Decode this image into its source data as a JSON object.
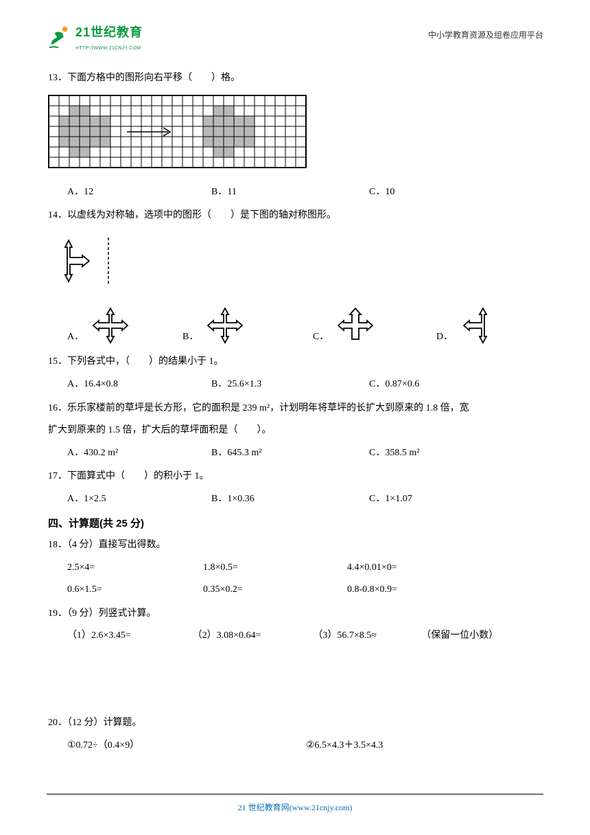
{
  "header": {
    "logo_main": "21世纪教育",
    "logo_sub": "HTTP://WWW.21CNJY.COM",
    "right_text": "中小学教育资源及组卷应用平台"
  },
  "q13": {
    "text": "13．下面方格中的图形向右平移（　　）格。",
    "optA": "A．12",
    "optB": "B．11",
    "optC": "C．10"
  },
  "q14": {
    "text": "14．以虚线为对称轴，选项中的图形（　　）是下图的轴对称图形。",
    "optA": "A．",
    "optB": "B．",
    "optC": "C．",
    "optD": "D．"
  },
  "q15": {
    "text": "15．下列各式中，（　　）的结果小于 1。",
    "optA": "A．16.4×0.8",
    "optB": "B．25.6×1.3",
    "optC": "C．0.87×0.6"
  },
  "q16": {
    "text1": "16．乐乐家楼前的草坪是长方形，它的面积是 239 m²，计划明年将草坪的长扩大到原来的 1.8 倍，宽",
    "text2": "扩大到原来的 1.5 倍，扩大后的草坪面积是（　　）。",
    "optA": "A．430.2 m²",
    "optB": "B．645.3 m²",
    "optC": "C．358.5 m²"
  },
  "q17": {
    "text": "17．下面算式中（　　）的积小于 1。",
    "optA": "A．1×2.5",
    "optB": "B．1×0.36",
    "optC": "C．1×1.07"
  },
  "section4": "四、计算题(共 25 分)",
  "q18": {
    "text": "18．（4 分）直接写出得数。",
    "r1c1": "2.5×4=",
    "r1c2": "1.8×0.5=",
    "r1c3": "4.4×0.01×0=",
    "r2c1": "0.6×1.5=",
    "r2c2": "0.35×0.2=",
    "r2c3": "0.8-0.8×0.9="
  },
  "q19": {
    "text": "19．（9 分）列竖式计算。",
    "p1": "（1）2.6×3.45=",
    "p2": "（2）3.08×0.64=",
    "p3": "（3）56.7×8.5≈",
    "note": "（保留一位小数）"
  },
  "q20": {
    "text": "20．（12 分）计算题。",
    "p1": "①0.72÷（0.4×9）",
    "p2": "②6.5×4.3＋3.5×4.3"
  },
  "footer": "21 世纪教育网(www.21cnjy.com)",
  "grid": {
    "cols": 25,
    "rows": 7,
    "cell": 15,
    "fill": "#b8b8b8",
    "stroke": "#000000"
  },
  "arrow_colors": {
    "stroke": "#000000",
    "fill": "#ffffff"
  }
}
